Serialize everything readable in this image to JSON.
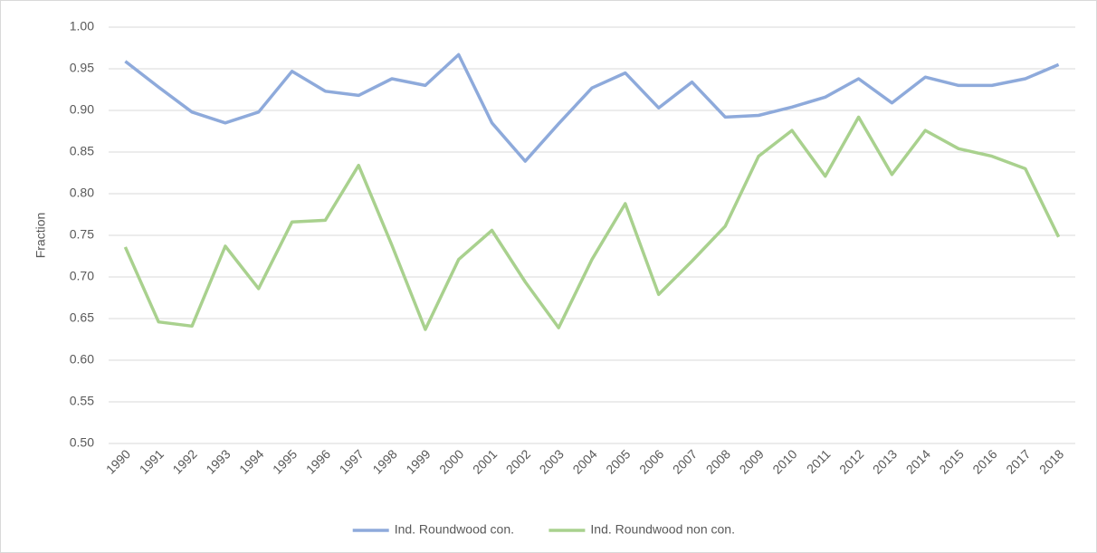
{
  "chart_data": {
    "type": "line",
    "y_label": "Fraction",
    "categories": [
      "1990",
      "1991",
      "1992",
      "1993",
      "1994",
      "1995",
      "1996",
      "1997",
      "1998",
      "1999",
      "2000",
      "2001",
      "2002",
      "2003",
      "2004",
      "2005",
      "2006",
      "2007",
      "2008",
      "2009",
      "2010",
      "2011",
      "2012",
      "2013",
      "2014",
      "2015",
      "2016",
      "2017",
      "2018"
    ],
    "series": [
      {
        "name": "Ind. Roundwood con.",
        "color": "#8eaadb",
        "values": [
          0.959,
          0.928,
          0.898,
          0.885,
          0.898,
          0.947,
          0.923,
          0.918,
          0.938,
          0.93,
          0.967,
          0.885,
          0.839,
          0.884,
          0.927,
          0.945,
          0.903,
          0.934,
          0.892,
          0.894,
          0.904,
          0.916,
          0.938,
          0.909,
          0.94,
          0.93,
          0.93,
          0.938,
          0.955
        ]
      },
      {
        "name": "Ind. Roundwood non con.",
        "color": "#a9d18e",
        "values": [
          0.736,
          0.646,
          0.641,
          0.737,
          0.686,
          0.766,
          0.768,
          0.834,
          0.738,
          0.637,
          0.721,
          0.756,
          0.694,
          0.639,
          0.721,
          0.788,
          0.679,
          0.719,
          0.761,
          0.845,
          0.876,
          0.821,
          0.892,
          0.823,
          0.876,
          0.854,
          0.845,
          0.83,
          0.748
        ]
      }
    ],
    "ylim": [
      0.5,
      1.0
    ],
    "yticks": [
      {
        "value": 0.5,
        "label": "0.50"
      },
      {
        "value": 0.55,
        "label": "0.55"
      },
      {
        "value": 0.6,
        "label": "0.60"
      },
      {
        "value": 0.65,
        "label": "0.65"
      },
      {
        "value": 0.7,
        "label": "0.70"
      },
      {
        "value": 0.75,
        "label": "0.75"
      },
      {
        "value": 0.8,
        "label": "0.80"
      },
      {
        "value": 0.85,
        "label": "0.85"
      },
      {
        "value": 0.9,
        "label": "0.90"
      },
      {
        "value": 0.95,
        "label": "0.95"
      },
      {
        "value": 1.0,
        "label": "1.00"
      }
    ],
    "grid": true,
    "legend": "bottom"
  }
}
